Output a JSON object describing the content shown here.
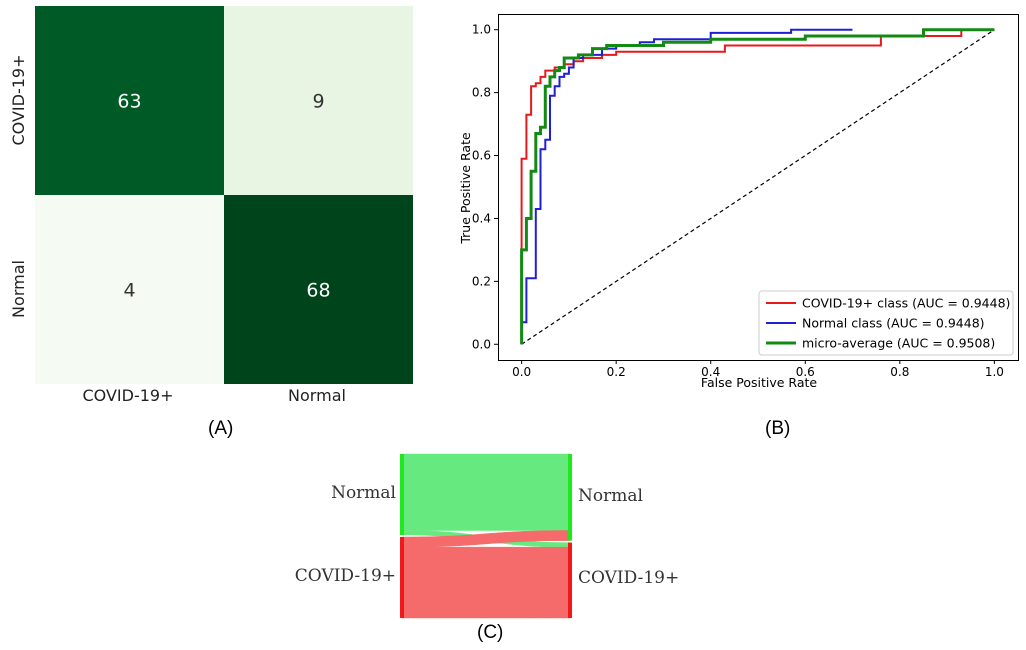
{
  "panels": {
    "a_label": "(A)",
    "b_label": "(B)",
    "c_label": "(C)"
  },
  "chart_data": [
    {
      "type": "heatmap",
      "rows": [
        "COVID-19+",
        "Normal"
      ],
      "columns": [
        "COVID-19+",
        "Normal"
      ],
      "values": [
        [
          63,
          9
        ],
        [
          4,
          68
        ]
      ],
      "colors": {
        "high": "#00441b",
        "mid_high": "#005a25",
        "low": "#e8f5e3",
        "lowest": "#f5fbf2",
        "text_dark_bg": "#ffffff",
        "text_light_bg": "#333333"
      }
    },
    {
      "type": "line",
      "xlabel": "False Positive Rate",
      "ylabel": "True Positive Rate",
      "xlim": [
        -0.05,
        1.05
      ],
      "ylim": [
        -0.05,
        1.05
      ],
      "xticks": [
        "0.0",
        "0.2",
        "0.4",
        "0.6",
        "0.8",
        "1.0"
      ],
      "yticks": [
        "0.0",
        "0.2",
        "0.4",
        "0.6",
        "0.8",
        "1.0"
      ],
      "legend_position": "bottom-right",
      "series": [
        {
          "name": "COVID-19+ class (AUC = 0.9448)",
          "color": "#e41a1c",
          "points": [
            [
              0,
              0
            ],
            [
              0,
              0.59
            ],
            [
              0.01,
              0.59
            ],
            [
              0.01,
              0.73
            ],
            [
              0.02,
              0.73
            ],
            [
              0.02,
              0.82
            ],
            [
              0.03,
              0.82
            ],
            [
              0.03,
              0.83
            ],
            [
              0.04,
              0.83
            ],
            [
              0.04,
              0.85
            ],
            [
              0.05,
              0.85
            ],
            [
              0.05,
              0.87
            ],
            [
              0.07,
              0.87
            ],
            [
              0.07,
              0.88
            ],
            [
              0.09,
              0.88
            ],
            [
              0.09,
              0.89
            ],
            [
              0.11,
              0.89
            ],
            [
              0.11,
              0.9
            ],
            [
              0.13,
              0.9
            ],
            [
              0.13,
              0.91
            ],
            [
              0.17,
              0.91
            ],
            [
              0.17,
              0.92
            ],
            [
              0.2,
              0.92
            ],
            [
              0.2,
              0.93
            ],
            [
              0.43,
              0.93
            ],
            [
              0.43,
              0.95
            ],
            [
              0.76,
              0.95
            ],
            [
              0.76,
              0.98
            ],
            [
              0.93,
              0.98
            ],
            [
              0.93,
              1.0
            ],
            [
              1.0,
              1.0
            ]
          ]
        },
        {
          "name": "Normal class (AUC = 0.9448)",
          "color": "#1f1fd6",
          "points": [
            [
              0,
              0
            ],
            [
              0,
              0.07
            ],
            [
              0.01,
              0.07
            ],
            [
              0.01,
              0.21
            ],
            [
              0.03,
              0.21
            ],
            [
              0.03,
              0.43
            ],
            [
              0.04,
              0.43
            ],
            [
              0.04,
              0.62
            ],
            [
              0.05,
              0.62
            ],
            [
              0.05,
              0.65
            ],
            [
              0.06,
              0.65
            ],
            [
              0.06,
              0.79
            ],
            [
              0.07,
              0.79
            ],
            [
              0.07,
              0.82
            ],
            [
              0.08,
              0.82
            ],
            [
              0.08,
              0.85
            ],
            [
              0.09,
              0.85
            ],
            [
              0.09,
              0.86
            ],
            [
              0.1,
              0.86
            ],
            [
              0.1,
              0.88
            ],
            [
              0.11,
              0.88
            ],
            [
              0.11,
              0.91
            ],
            [
              0.13,
              0.91
            ],
            [
              0.13,
              0.92
            ],
            [
              0.17,
              0.92
            ],
            [
              0.17,
              0.94
            ],
            [
              0.2,
              0.94
            ],
            [
              0.2,
              0.95
            ],
            [
              0.25,
              0.95
            ],
            [
              0.25,
              0.96
            ],
            [
              0.28,
              0.96
            ],
            [
              0.28,
              0.97
            ],
            [
              0.4,
              0.97
            ],
            [
              0.4,
              0.99
            ],
            [
              0.57,
              0.99
            ],
            [
              0.57,
              1.0
            ],
            [
              0.7,
              1.0
            ]
          ]
        },
        {
          "name": "micro-average (AUC = 0.9508)",
          "color": "#138a13",
          "points": [
            [
              0,
              0
            ],
            [
              0,
              0.3
            ],
            [
              0.01,
              0.3
            ],
            [
              0.01,
              0.4
            ],
            [
              0.02,
              0.4
            ],
            [
              0.02,
              0.55
            ],
            [
              0.03,
              0.55
            ],
            [
              0.03,
              0.67
            ],
            [
              0.04,
              0.67
            ],
            [
              0.04,
              0.69
            ],
            [
              0.05,
              0.69
            ],
            [
              0.05,
              0.82
            ],
            [
              0.06,
              0.82
            ],
            [
              0.06,
              0.85
            ],
            [
              0.07,
              0.85
            ],
            [
              0.07,
              0.87
            ],
            [
              0.08,
              0.87
            ],
            [
              0.08,
              0.88
            ],
            [
              0.09,
              0.88
            ],
            [
              0.09,
              0.91
            ],
            [
              0.12,
              0.91
            ],
            [
              0.12,
              0.92
            ],
            [
              0.15,
              0.92
            ],
            [
              0.15,
              0.94
            ],
            [
              0.18,
              0.94
            ],
            [
              0.18,
              0.95
            ],
            [
              0.3,
              0.95
            ],
            [
              0.3,
              0.96
            ],
            [
              0.4,
              0.96
            ],
            [
              0.4,
              0.97
            ],
            [
              0.6,
              0.97
            ],
            [
              0.6,
              0.98
            ],
            [
              0.85,
              0.98
            ],
            [
              0.85,
              1.0
            ],
            [
              1.0,
              1.0
            ]
          ]
        }
      ],
      "diagonal": {
        "points": [
          [
            0,
            0
          ],
          [
            1,
            1
          ]
        ],
        "color": "#000000",
        "style": "dashed"
      }
    },
    {
      "type": "sankey",
      "left_nodes": [
        {
          "label": "Normal",
          "value": 72,
          "color": "#1ee81e"
        },
        {
          "label": "COVID-19+",
          "value": 72,
          "color": "#f01818"
        }
      ],
      "right_nodes": [
        {
          "label": "Normal",
          "value": 77,
          "color": "#1ee81e"
        },
        {
          "label": "COVID-19+",
          "value": 67,
          "color": "#f01818"
        }
      ],
      "flows": [
        {
          "from": "Normal",
          "to": "Normal",
          "value": 68,
          "color": "#66ea80"
        },
        {
          "from": "Normal",
          "to": "COVID-19+",
          "value": 4,
          "color": "#66ea80"
        },
        {
          "from": "COVID-19+",
          "to": "Normal",
          "value": 9,
          "color": "#f56a6a"
        },
        {
          "from": "COVID-19+",
          "to": "COVID-19+",
          "value": 63,
          "color": "#f56a6a"
        }
      ]
    }
  ]
}
